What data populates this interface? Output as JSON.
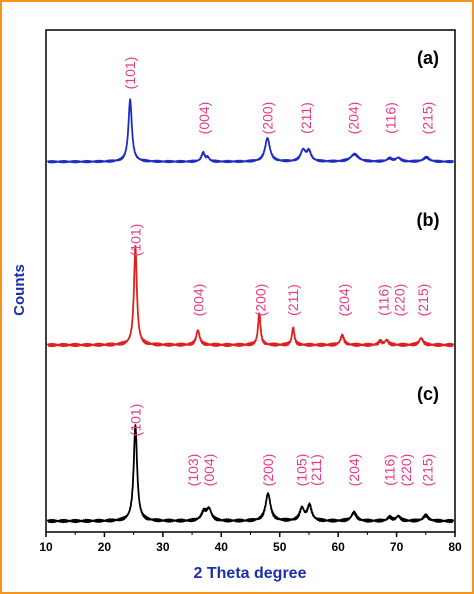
{
  "chart_data": {
    "type": "line",
    "xlabel": "2 Theta degree",
    "ylabel": "Counts",
    "xlim": [
      10,
      80
    ],
    "x_ticks": [
      10,
      20,
      30,
      40,
      50,
      60,
      70,
      80
    ],
    "grid": false,
    "colors": {
      "frame": "#f7941d",
      "axis_title": "#1c2fa8",
      "peak_label": "#e83a86"
    },
    "panels": [
      {
        "label": "(a)",
        "color": "#1f2cc2",
        "baseline": 0.02,
        "peaks": [
          {
            "x": 24.4,
            "h": 1.0,
            "w": 0.35
          },
          {
            "x": 36.9,
            "h": 0.14,
            "w": 0.35
          },
          {
            "x": 37.7,
            "h": 0.06,
            "w": 0.3
          },
          {
            "x": 47.9,
            "h": 0.38,
            "w": 0.5
          },
          {
            "x": 54.0,
            "h": 0.18,
            "w": 0.5
          },
          {
            "x": 55.0,
            "h": 0.16,
            "w": 0.45
          },
          {
            "x": 62.8,
            "h": 0.12,
            "w": 0.8
          },
          {
            "x": 68.8,
            "h": 0.05,
            "w": 0.5
          },
          {
            "x": 70.3,
            "h": 0.06,
            "w": 0.5
          },
          {
            "x": 75.1,
            "h": 0.07,
            "w": 0.6
          }
        ],
        "annotations": [
          {
            "text": "(101)",
            "x": 24.4
          },
          {
            "text": "(004)",
            "x": 37.0
          },
          {
            "text": "(200)",
            "x": 47.9
          },
          {
            "text": "(211)",
            "x": 54.5
          },
          {
            "text": "(204)",
            "x": 62.6
          },
          {
            "text": "(116)",
            "x": 69.0
          },
          {
            "text": "(215)",
            "x": 75.3
          }
        ]
      },
      {
        "label": "(b)",
        "color": "#e02020",
        "baseline": 0.02,
        "peaks": [
          {
            "x": 25.3,
            "h": 1.0,
            "w": 0.3
          },
          {
            "x": 36.0,
            "h": 0.15,
            "w": 0.35
          },
          {
            "x": 46.5,
            "h": 0.33,
            "w": 0.25
          },
          {
            "x": 52.3,
            "h": 0.18,
            "w": 0.25
          },
          {
            "x": 60.7,
            "h": 0.1,
            "w": 0.35
          },
          {
            "x": 67.2,
            "h": 0.04,
            "w": 0.3
          },
          {
            "x": 68.3,
            "h": 0.05,
            "w": 0.35
          },
          {
            "x": 74.2,
            "h": 0.07,
            "w": 0.4
          }
        ],
        "annotations": [
          {
            "text": "(101)",
            "x": 25.3
          },
          {
            "text": "(004)",
            "x": 36.1
          },
          {
            "text": "(200)",
            "x": 46.7
          },
          {
            "text": "(211)",
            "x": 52.3
          },
          {
            "text": "(204)",
            "x": 61.0
          },
          {
            "text": "(116)",
            "x": 67.8
          },
          {
            "text": "(220)",
            "x": 70.5
          },
          {
            "text": "(215)",
            "x": 74.5
          }
        ]
      },
      {
        "label": "(c)",
        "color": "#000000",
        "baseline": 0.02,
        "peaks": [
          {
            "x": 25.3,
            "h": 1.0,
            "w": 0.35
          },
          {
            "x": 37.0,
            "h": 0.09,
            "w": 0.5
          },
          {
            "x": 37.9,
            "h": 0.12,
            "w": 0.5
          },
          {
            "x": 48.0,
            "h": 0.29,
            "w": 0.5
          },
          {
            "x": 53.8,
            "h": 0.13,
            "w": 0.45
          },
          {
            "x": 55.1,
            "h": 0.16,
            "w": 0.45
          },
          {
            "x": 62.7,
            "h": 0.09,
            "w": 0.5
          },
          {
            "x": 68.8,
            "h": 0.04,
            "w": 0.4
          },
          {
            "x": 70.3,
            "h": 0.05,
            "w": 0.45
          },
          {
            "x": 75.0,
            "h": 0.06,
            "w": 0.5
          }
        ],
        "annotations": [
          {
            "text": "(101)",
            "x": 25.3
          },
          {
            "text": "(103)",
            "x": 35.2
          },
          {
            "text": "(004)",
            "x": 37.9
          },
          {
            "text": "(200)",
            "x": 48.0
          },
          {
            "text": "(105)",
            "x": 53.7
          },
          {
            "text": "(211)",
            "x": 56.2
          },
          {
            "text": "(204)",
            "x": 62.7
          },
          {
            "text": "(116)",
            "x": 68.8
          },
          {
            "text": "(220)",
            "x": 71.6
          },
          {
            "text": "(215)",
            "x": 75.3
          }
        ]
      }
    ]
  }
}
